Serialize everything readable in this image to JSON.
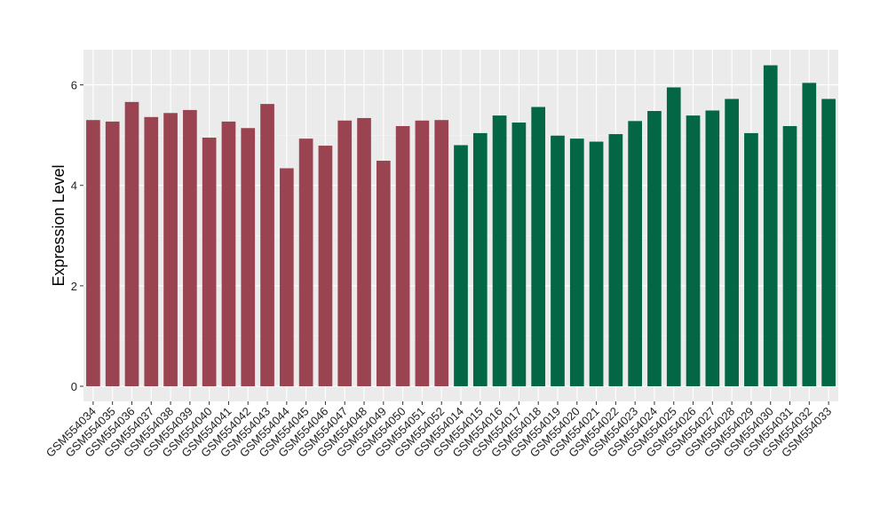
{
  "chart_data": {
    "type": "bar",
    "ylabel": "Expression Level",
    "xlabel": "",
    "ylim": [
      -0.3,
      6.7
    ],
    "yticks": [
      0,
      2,
      4,
      6
    ],
    "grid": true,
    "panel_background": "#EBEBEB",
    "categories": [
      "GSM554034",
      "GSM554035",
      "GSM554036",
      "GSM554037",
      "GSM554038",
      "GSM554039",
      "GSM554040",
      "GSM554041",
      "GSM554042",
      "GSM554043",
      "GSM554044",
      "GSM554045",
      "GSM554046",
      "GSM554047",
      "GSM554048",
      "GSM554049",
      "GSM554050",
      "GSM554051",
      "GSM554052",
      "GSM554014",
      "GSM554015",
      "GSM554016",
      "GSM554017",
      "GSM554018",
      "GSM554019",
      "GSM554020",
      "GSM554021",
      "GSM554022",
      "GSM554023",
      "GSM554024",
      "GSM554025",
      "GSM554026",
      "GSM554027",
      "GSM554028",
      "GSM554029",
      "GSM554030",
      "GSM554031",
      "GSM554032",
      "GSM554033"
    ],
    "values": [
      5.3,
      5.27,
      5.66,
      5.36,
      5.44,
      5.5,
      4.95,
      5.27,
      5.14,
      5.62,
      4.34,
      4.93,
      4.79,
      5.29,
      5.34,
      4.49,
      5.18,
      5.29,
      5.3,
      4.8,
      5.04,
      5.39,
      5.25,
      5.56,
      4.99,
      4.93,
      4.87,
      5.02,
      5.28,
      5.48,
      5.95,
      5.39,
      5.49,
      5.72,
      5.04,
      6.39,
      5.18,
      6.04,
      5.72
    ],
    "colors": [
      "#9B4451",
      "#9B4451",
      "#9B4451",
      "#9B4451",
      "#9B4451",
      "#9B4451",
      "#9B4451",
      "#9B4451",
      "#9B4451",
      "#9B4451",
      "#9B4451",
      "#9B4451",
      "#9B4451",
      "#9B4451",
      "#9B4451",
      "#9B4451",
      "#9B4451",
      "#9B4451",
      "#9B4451",
      "#036644",
      "#036644",
      "#036644",
      "#036644",
      "#036644",
      "#036644",
      "#036644",
      "#036644",
      "#036644",
      "#036644",
      "#036644",
      "#036644",
      "#036644",
      "#036644",
      "#036644",
      "#036644",
      "#036644",
      "#036644",
      "#036644",
      "#036644"
    ]
  }
}
